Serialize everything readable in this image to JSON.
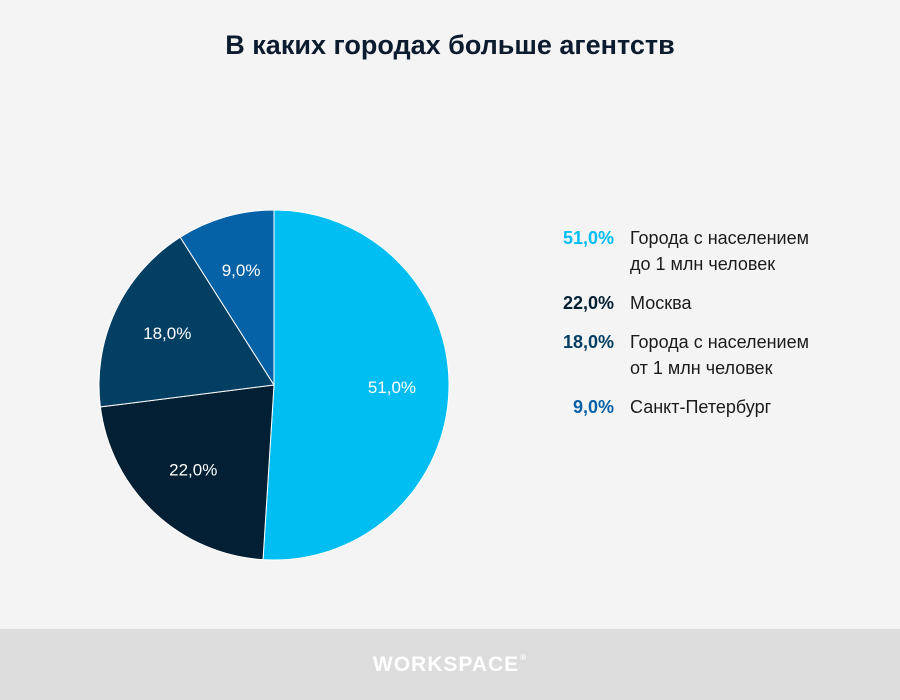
{
  "chart_data": {
    "type": "pie",
    "title": "В каких городах больше агентств",
    "slices": [
      {
        "label": "Города с населением до 1 млн человек",
        "value": 51.0,
        "display": "51,0%",
        "color": "#00bdf2"
      },
      {
        "label": "Москва",
        "value": 22.0,
        "display": "22,0%",
        "color": "#031f33"
      },
      {
        "label": "Города с населением от 1 млн человек",
        "value": 18.0,
        "display": "18,0%",
        "color": "#033e63"
      },
      {
        "label": "Санкт-Петербург",
        "value": 9.0,
        "display": "9,0%",
        "color": "#0562a7"
      }
    ],
    "legend_position": "right"
  },
  "legend_text_colors": [
    "#00bdf2",
    "#031f33",
    "#033e63",
    "#0562a7"
  ],
  "footer": {
    "logo_text": "WORKSPACE",
    "logo_mark": "®"
  }
}
